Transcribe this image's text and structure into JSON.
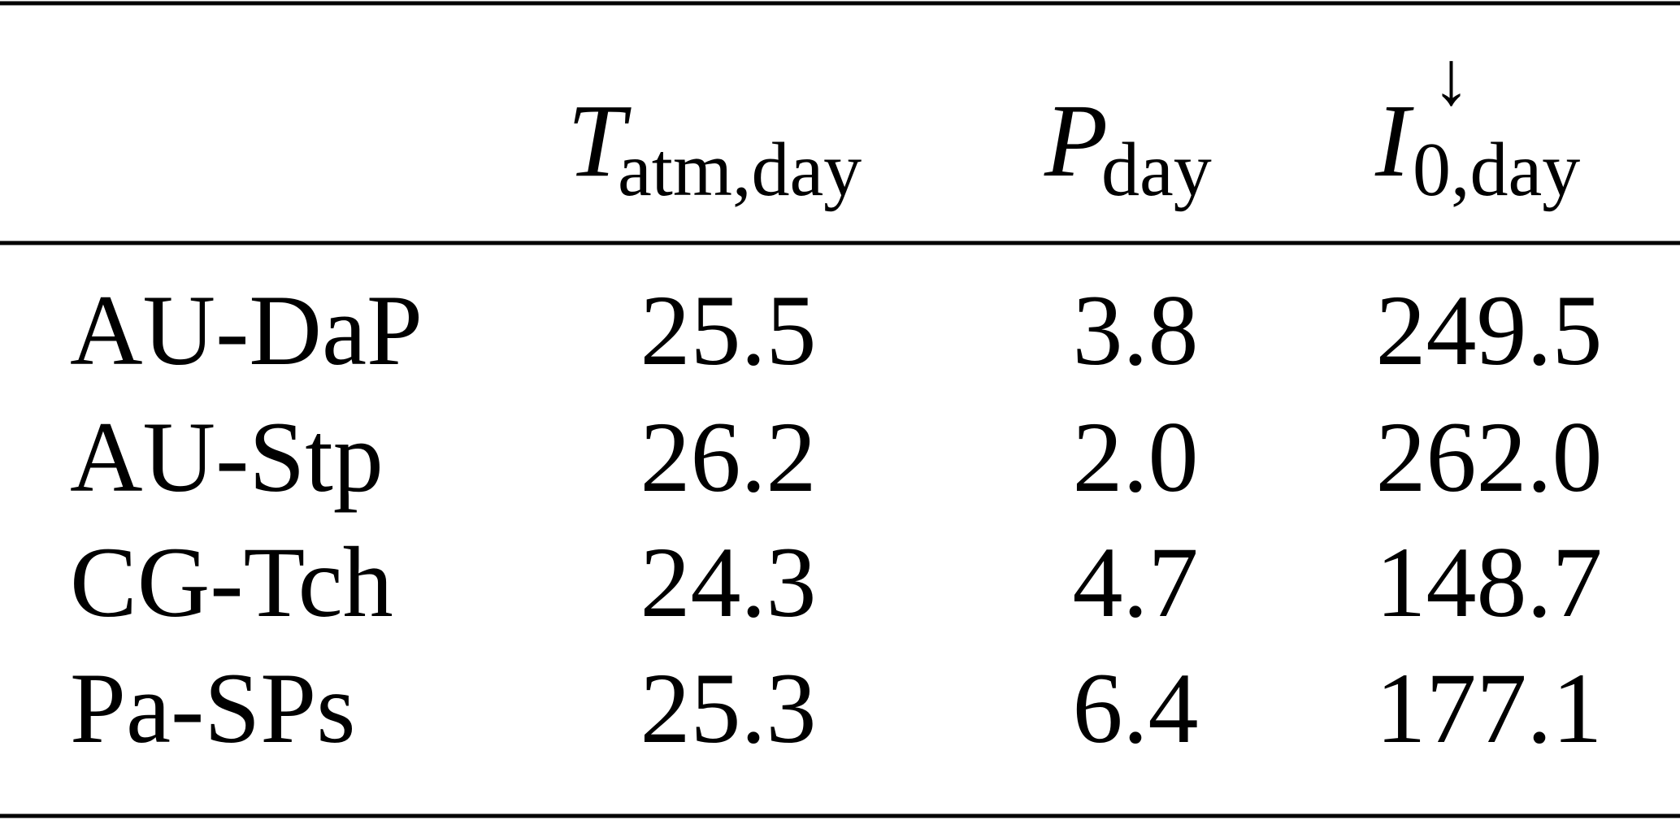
{
  "table": {
    "header": [
      {
        "symbol": "T",
        "sub": "atm,day"
      },
      {
        "symbol": "P",
        "sub": "day"
      },
      {
        "symbol": "I",
        "sup": "↓",
        "sub": "0,day"
      }
    ],
    "rows": [
      [
        "AU-DaP",
        "25.5",
        "3.8",
        "249.5"
      ],
      [
        "AU-Stp",
        "26.2",
        "2.0",
        "262.0"
      ],
      [
        "CG-Tch",
        "24.3",
        "4.7",
        "148.7"
      ],
      [
        "Pa-SPs",
        "25.3",
        "6.4",
        "177.1"
      ]
    ]
  }
}
